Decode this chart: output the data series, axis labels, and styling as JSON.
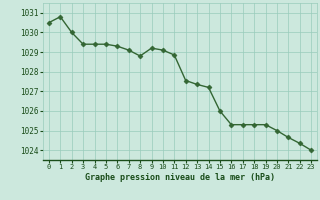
{
  "x": [
    0,
    1,
    2,
    3,
    4,
    5,
    6,
    7,
    8,
    9,
    10,
    11,
    12,
    13,
    14,
    15,
    16,
    17,
    18,
    19,
    20,
    21,
    22,
    23
  ],
  "y": [
    1030.5,
    1030.8,
    1030.0,
    1029.4,
    1029.4,
    1029.4,
    1029.3,
    1029.1,
    1028.8,
    1029.2,
    1029.1,
    1028.85,
    1027.55,
    1027.35,
    1027.2,
    1026.0,
    1025.3,
    1025.3,
    1025.3,
    1025.3,
    1025.0,
    1024.65,
    1024.35,
    1024.0
  ],
  "line_color": "#336633",
  "marker": "D",
  "marker_size": 2.5,
  "bg_color": "#cce8dd",
  "grid_color": "#99ccbb",
  "xlabel": "Graphe pression niveau de la mer (hPa)",
  "xlabel_color": "#1a4d1a",
  "tick_color": "#1a4d1a",
  "ylim": [
    1023.5,
    1031.5
  ],
  "xlim": [
    -0.5,
    23.5
  ],
  "yticks": [
    1024,
    1025,
    1026,
    1027,
    1028,
    1029,
    1030,
    1031
  ],
  "xticks": [
    0,
    1,
    2,
    3,
    4,
    5,
    6,
    7,
    8,
    9,
    10,
    11,
    12,
    13,
    14,
    15,
    16,
    17,
    18,
    19,
    20,
    21,
    22,
    23
  ],
  "line_width": 1.0,
  "font_family": "monospace"
}
